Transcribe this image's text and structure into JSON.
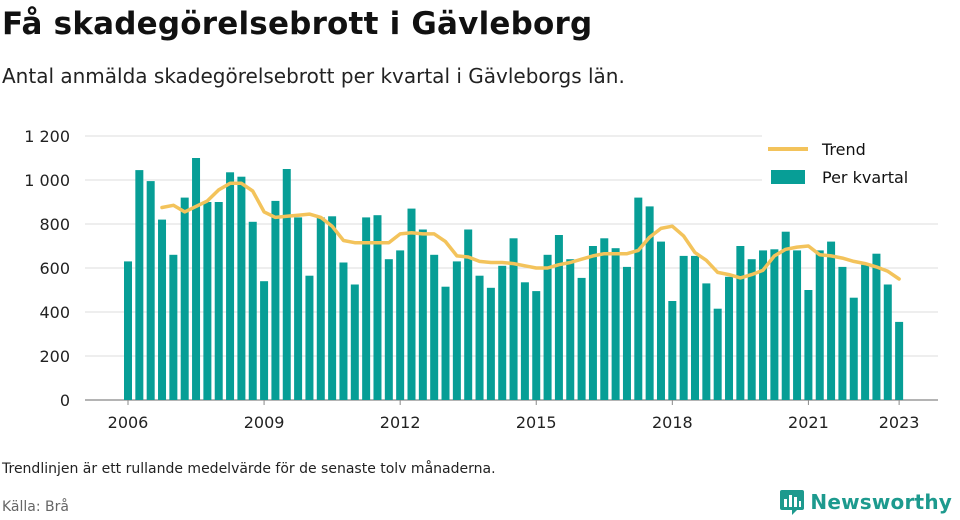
{
  "header": {
    "title": "Få skadegörelsebrott i Gävleborg",
    "subtitle": "Antal anmälda skadegörelsebrott per kvartal i Gävleborgs län."
  },
  "footer": {
    "note": "Trendlinjen är ett rullande medelvärde för de senaste tolv månaderna.",
    "source": "Källa: Brå",
    "brand": "Newsworthy",
    "brand_icon": "bar-chart-logo-icon"
  },
  "colors": {
    "bars": "#079e96",
    "trend": "#f3c35b",
    "grid": "#dddddd",
    "brand": "#1d9a8e"
  },
  "chart_data": {
    "type": "bar",
    "title": "",
    "xlabel": "",
    "ylabel": "",
    "ylim": [
      0,
      1200
    ],
    "yticks": [
      0,
      200,
      400,
      600,
      800,
      1000,
      1200
    ],
    "ytick_labels": [
      "0",
      "200",
      "400",
      "600",
      "800",
      "1 000",
      "1 200"
    ],
    "xtick_labels": [
      "2006",
      "2009",
      "2012",
      "2015",
      "2018",
      "2021",
      "2023"
    ],
    "grid": true,
    "legend_position": "top-right",
    "legend": [
      "Trend",
      "Per kvartal"
    ],
    "categories": [
      "2006 Q1",
      "2006 Q2",
      "2006 Q3",
      "2006 Q4",
      "2007 Q1",
      "2007 Q2",
      "2007 Q3",
      "2007 Q4",
      "2008 Q1",
      "2008 Q2",
      "2008 Q3",
      "2008 Q4",
      "2009 Q1",
      "2009 Q2",
      "2009 Q3",
      "2009 Q4",
      "2010 Q1",
      "2010 Q2",
      "2010 Q3",
      "2010 Q4",
      "2011 Q1",
      "2011 Q2",
      "2011 Q3",
      "2011 Q4",
      "2012 Q1",
      "2012 Q2",
      "2012 Q3",
      "2012 Q4",
      "2013 Q1",
      "2013 Q2",
      "2013 Q3",
      "2013 Q4",
      "2014 Q1",
      "2014 Q2",
      "2014 Q3",
      "2014 Q4",
      "2015 Q1",
      "2015 Q2",
      "2015 Q3",
      "2015 Q4",
      "2016 Q1",
      "2016 Q2",
      "2016 Q3",
      "2016 Q4",
      "2017 Q1",
      "2017 Q2",
      "2017 Q3",
      "2017 Q4",
      "2018 Q1",
      "2018 Q2",
      "2018 Q3",
      "2018 Q4",
      "2019 Q1",
      "2019 Q2",
      "2019 Q3",
      "2019 Q4",
      "2020 Q1",
      "2020 Q2",
      "2020 Q3",
      "2020 Q4",
      "2021 Q1",
      "2021 Q2",
      "2021 Q3",
      "2021 Q4",
      "2022 Q1",
      "2022 Q2",
      "2022 Q3",
      "2022 Q4",
      "2023 Q1"
    ],
    "series": [
      {
        "name": "Per kvartal",
        "kind": "bar",
        "values": [
          630,
          1045,
          995,
          820,
          660,
          920,
          1100,
          900,
          900,
          1035,
          1015,
          810,
          540,
          905,
          1050,
          830,
          565,
          830,
          835,
          625,
          525,
          830,
          840,
          640,
          680,
          870,
          775,
          660,
          515,
          630,
          775,
          565,
          510,
          610,
          735,
          535,
          495,
          660,
          750,
          640,
          555,
          700,
          735,
          690,
          605,
          920,
          880,
          720,
          450,
          655,
          655,
          530,
          415,
          560,
          700,
          640,
          680,
          685,
          765,
          680,
          500,
          680,
          720,
          605,
          465,
          615,
          665,
          525,
          355
        ]
      },
      {
        "name": "Trend",
        "kind": "line",
        "values": [
          null,
          null,
          null,
          875,
          885,
          855,
          880,
          905,
          955,
          985,
          985,
          950,
          855,
          830,
          835,
          840,
          845,
          830,
          790,
          725,
          715,
          715,
          715,
          715,
          755,
          760,
          755,
          755,
          720,
          655,
          650,
          630,
          625,
          625,
          620,
          610,
          600,
          600,
          615,
          625,
          640,
          655,
          665,
          665,
          665,
          680,
          740,
          780,
          790,
          745,
          670,
          635,
          580,
          570,
          555,
          570,
          590,
          655,
          685,
          695,
          700,
          660,
          655,
          645,
          630,
          620,
          605,
          585,
          550
        ]
      }
    ]
  }
}
